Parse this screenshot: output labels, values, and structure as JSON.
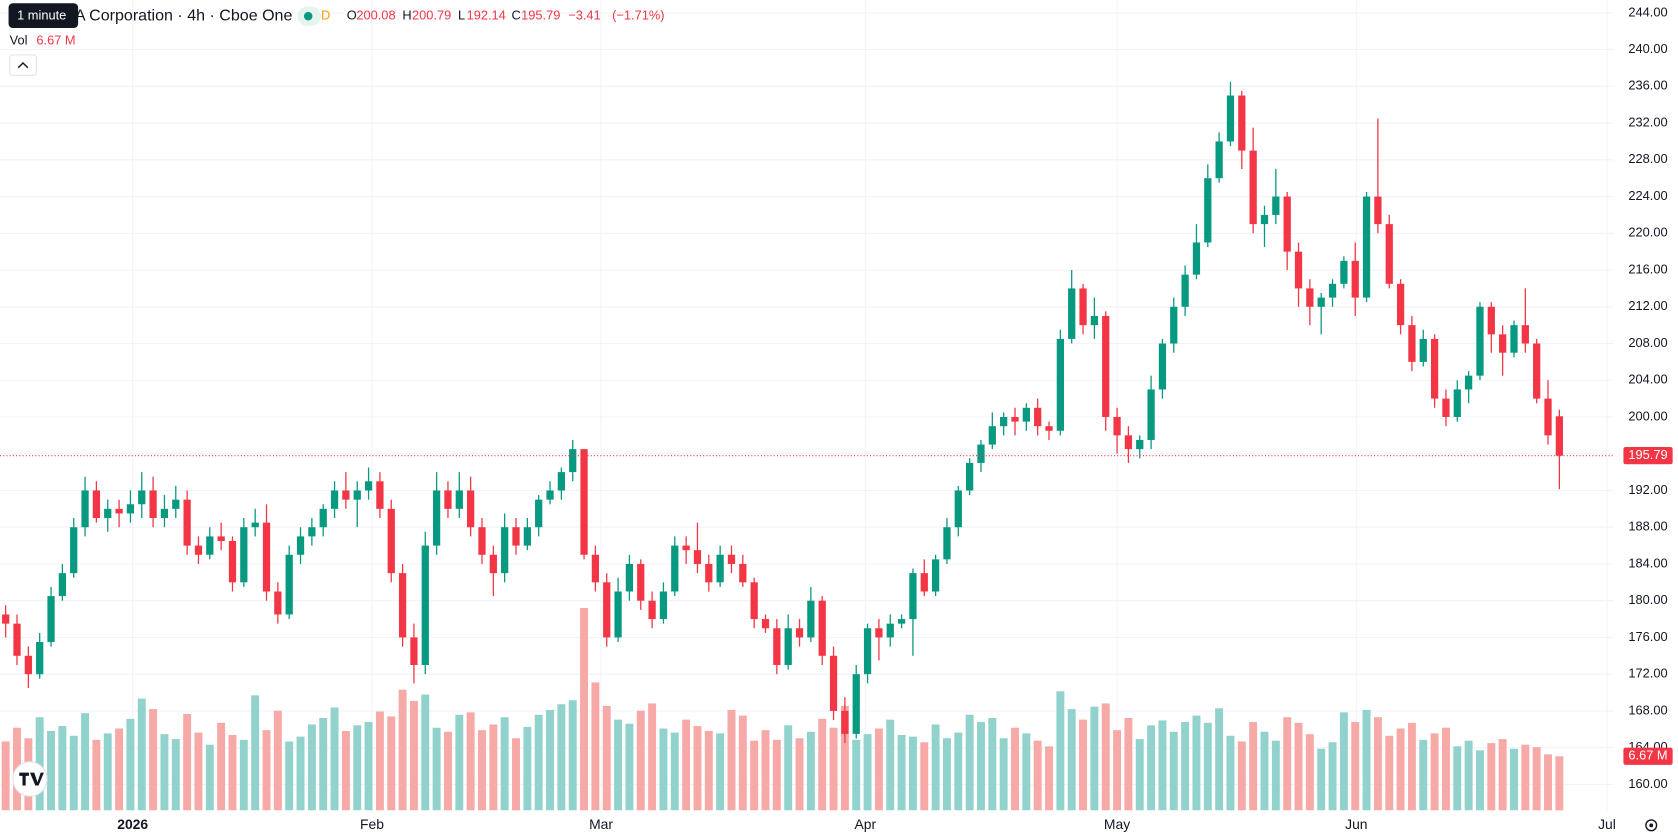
{
  "chart_data": {
    "type": "candlestick",
    "title": "A Corporation · 4h · Cboe One",
    "tooltip": "1 minute",
    "session_badge": "D",
    "ohlc_labels": [
      "O",
      "H",
      "L",
      "C"
    ],
    "change": {
      "value": -3.41,
      "label": "−3.41"
    },
    "change_pct": {
      "value": -1.71,
      "label": "(−1.71%)"
    },
    "volume_title": "Vol",
    "last_volume": {
      "value": 6.67,
      "label": "6.67 M"
    },
    "up_color": "#089981",
    "down_color": "#f23645",
    "up_volume_color": "#92d2cc",
    "down_volume_color": "#f7a9a7",
    "grid": true,
    "xlim": [
      -0.5,
      141.8
    ],
    "xticks": [
      {
        "value": 11.2,
        "label": "2026"
      },
      {
        "value": 32.3,
        "label": "Feb"
      },
      {
        "value": 52.5,
        "label": "Mar"
      },
      {
        "value": 75.8,
        "label": "Apr"
      },
      {
        "value": 98,
        "label": "May"
      },
      {
        "value": 119.1,
        "label": "Jun"
      },
      {
        "value": 141.2,
        "label": "Jul"
      }
    ],
    "ylim": [
      156.95,
      245.4
    ],
    "yticks": [
      {
        "value": 160,
        "label": "160.00"
      },
      {
        "value": 164,
        "label": "164.00"
      },
      {
        "value": 168,
        "label": "168.00"
      },
      {
        "value": 172,
        "label": "172.00"
      },
      {
        "value": 176,
        "label": "176.00"
      },
      {
        "value": 180,
        "label": "180.00"
      },
      {
        "value": 184,
        "label": "184.00"
      },
      {
        "value": 188,
        "label": "188.00"
      },
      {
        "value": 192,
        "label": "192.00"
      },
      {
        "value": 196,
        "label": "196.00"
      },
      {
        "value": 200,
        "label": "200.00"
      },
      {
        "value": 204,
        "label": "204.00"
      },
      {
        "value": 208,
        "label": "208.00"
      },
      {
        "value": 212,
        "label": "212.00"
      },
      {
        "value": 216,
        "label": "216.00"
      },
      {
        "value": 220,
        "label": "220.00"
      },
      {
        "value": 224,
        "label": "224.00"
      },
      {
        "value": 228,
        "label": "228.00"
      },
      {
        "value": 232,
        "label": "232.00"
      },
      {
        "value": 236,
        "label": "236.00"
      },
      {
        "value": 240,
        "label": "240.00"
      },
      {
        "value": 244,
        "label": "244.00"
      }
    ],
    "open": [
      178.5,
      177.5,
      174,
      172,
      175.5,
      180.5,
      183,
      188,
      192,
      189,
      190,
      189.5,
      190.5,
      192,
      189,
      190,
      191,
      186,
      185,
      187,
      186.5,
      182,
      188,
      188.5,
      181,
      178.5,
      185,
      187,
      188,
      190,
      192,
      191,
      192,
      193,
      190,
      183,
      176,
      173,
      186,
      192,
      190,
      192,
      188,
      185,
      183,
      188,
      186,
      188,
      191,
      192,
      194,
      196.5,
      185,
      182,
      176,
      181,
      184,
      180,
      178,
      181,
      186,
      185.5,
      184,
      182,
      185,
      184,
      182,
      178,
      177,
      173,
      177,
      176,
      180,
      174,
      168,
      165.5,
      172,
      177,
      176,
      177.5,
      178,
      183,
      181,
      184.5,
      188,
      192,
      195,
      197,
      199,
      200,
      199.5,
      201,
      199,
      198.5,
      208.5,
      214,
      210,
      211,
      200,
      198,
      196.5,
      197.5,
      203,
      208,
      212,
      215.5,
      219,
      226,
      230,
      235,
      229,
      221,
      222,
      224,
      218,
      214,
      212,
      213,
      214.5,
      217,
      213,
      224,
      221,
      214.5,
      210,
      206,
      208.5,
      202,
      200,
      203,
      204.5,
      212,
      209,
      207,
      210,
      208,
      202,
      200.08
    ],
    "high": [
      179.5,
      178.5,
      175,
      176.5,
      181.5,
      184,
      189,
      193.5,
      193,
      191,
      191,
      192,
      194,
      193.5,
      191.5,
      192.5,
      192,
      187,
      188,
      188.5,
      187,
      189,
      190,
      190.5,
      182,
      186,
      188,
      189,
      190.5,
      193,
      194,
      193,
      194.5,
      194,
      191,
      184,
      177.5,
      187.5,
      194,
      193,
      194,
      193.5,
      189,
      186,
      189.5,
      189,
      189,
      191.5,
      193,
      194.5,
      197.5,
      196.5,
      186,
      183,
      182.5,
      185,
      184.5,
      181,
      182,
      187,
      187,
      188.5,
      185,
      186,
      186,
      185,
      182.5,
      178.5,
      178,
      178.5,
      178,
      181.5,
      180.5,
      175,
      169.5,
      173,
      177.5,
      178,
      178.5,
      178.5,
      183.5,
      184.5,
      185,
      189,
      192.5,
      195.5,
      197.5,
      200.5,
      200.5,
      201,
      201.5,
      202,
      199.5,
      209.5,
      216,
      214.5,
      213,
      211.5,
      201,
      199,
      198,
      204.5,
      208.5,
      213,
      216.5,
      221,
      227.5,
      231,
      236.5,
      235.5,
      231.5,
      223,
      227,
      224.5,
      219,
      215,
      213.5,
      215,
      217.5,
      219,
      224.5,
      232.5,
      222,
      215,
      211,
      209.5,
      209,
      203,
      204,
      205,
      212.5,
      212.5,
      210,
      210.5,
      214,
      208.5,
      204,
      200.79
    ],
    "low": [
      176,
      173,
      170.5,
      171.5,
      175,
      180,
      182.5,
      187,
      188.5,
      187.5,
      188,
      188.5,
      189,
      188,
      188,
      189,
      185,
      184,
      184.5,
      185.5,
      181,
      181.5,
      187,
      180,
      177.5,
      178,
      184,
      186,
      187,
      189,
      190,
      188,
      191,
      189,
      182,
      175,
      171,
      172,
      185,
      189,
      189,
      187,
      184,
      180.5,
      182,
      185,
      185.5,
      187,
      190.5,
      191,
      193,
      184.5,
      181,
      175,
      175.5,
      180,
      179,
      177,
      177.5,
      180.5,
      184,
      183,
      181,
      181.5,
      183,
      181.5,
      177,
      176.5,
      172,
      172.5,
      175,
      175.5,
      173,
      167,
      164.5,
      165,
      171,
      173.5,
      175,
      177,
      174,
      180.5,
      180.5,
      184,
      187,
      191.5,
      194,
      196.5,
      198,
      198,
      198.5,
      198,
      197.5,
      198,
      208,
      209,
      208.5,
      198.5,
      196,
      195,
      195.5,
      196.5,
      202,
      207,
      211,
      215,
      218.5,
      225.5,
      229.5,
      227,
      220,
      218.5,
      221,
      216,
      212,
      210,
      209,
      212,
      214,
      211,
      212.5,
      220,
      214,
      209,
      205,
      205.5,
      201,
      199,
      199.5,
      201.5,
      204,
      207,
      204.5,
      206.5,
      207,
      201.5,
      197,
      192.14
    ],
    "close": [
      177.5,
      174,
      172,
      175.5,
      180.5,
      183,
      188,
      192,
      189,
      190,
      189.5,
      190.5,
      192,
      189,
      190,
      191,
      186,
      185,
      187,
      186.5,
      182,
      188,
      188.5,
      181,
      178.5,
      185,
      187,
      188,
      190,
      192,
      191,
      192,
      193,
      190,
      183,
      176,
      173,
      186,
      192,
      190,
      192,
      188,
      185,
      183,
      188,
      186,
      188,
      191,
      192,
      194,
      196.5,
      185,
      182,
      176,
      181,
      184,
      180,
      178,
      181,
      186,
      185.5,
      184,
      182,
      185,
      184,
      182,
      178,
      177,
      173,
      177,
      176,
      180,
      174,
      168,
      165.5,
      172,
      177,
      176,
      177.5,
      178,
      183,
      181,
      184.5,
      188,
      192,
      195,
      197,
      199,
      200,
      199.5,
      201,
      199,
      198.5,
      208.5,
      214,
      210,
      211,
      200,
      198,
      196.5,
      197.5,
      203,
      208,
      212,
      215.5,
      219,
      226,
      230,
      235,
      229,
      221,
      222,
      224,
      218,
      214,
      212,
      213,
      214.5,
      217,
      213,
      224,
      221,
      214.5,
      210,
      206,
      208.5,
      202,
      200,
      203,
      204.5,
      212,
      209,
      207,
      210,
      208,
      202,
      198,
      195.79
    ],
    "volume": [
      8.5,
      10.2,
      8.9,
      11.5,
      9.8,
      10.4,
      9.2,
      12,
      8.7,
      9.5,
      10.1,
      11.3,
      13.8,
      12.5,
      9.4,
      8.8,
      11.9,
      9.6,
      8.1,
      10.8,
      9.3,
      8.7,
      14.2,
      9.9,
      12.3,
      8.5,
      9.1,
      10.6,
      11.4,
      12.7,
      9.8,
      10.5,
      10.9,
      12.2,
      11.6,
      14.9,
      13.5,
      14.3,
      10.2,
      9.7,
      11.8,
      12.1,
      9.9,
      10.6,
      11.5,
      8.9,
      10.3,
      11.8,
      12.4,
      13.1,
      13.6,
      25,
      15.8,
      12.9,
      11.2,
      10.7,
      12.3,
      13.2,
      10.1,
      9.6,
      11.2,
      10.4,
      9.8,
      9.5,
      12.4,
      11.7,
      8.6,
      9.9,
      8.7,
      10.5,
      8.9,
      9.7,
      11.3,
      10.2,
      12.9,
      8.7,
      9.4,
      10.1,
      11.2,
      9.3,
      9.1,
      8.4,
      10.6,
      8.9,
      9.6,
      11.8,
      10.9,
      11.4,
      8.9,
      10.2,
      9.5,
      8.6,
      7.9,
      14.7,
      12.5,
      11.2,
      12.8,
      13.2,
      9.9,
      11.4,
      8.8,
      10.5,
      11.1,
      9.7,
      10.9,
      11.7,
      10.8,
      12.6,
      9.2,
      8.5,
      10.9,
      9.7,
      8.6,
      11.5,
      10.8,
      9.4,
      7.6,
      8.4,
      12.1,
      10.9,
      12.4,
      11.5,
      9.2,
      10.1,
      10.8,
      8.7,
      9.5,
      10.2,
      7.9,
      8.6,
      7.4,
      8.3,
      8.8,
      7.6,
      8.1,
      7.8,
      6.9,
      6.67
    ]
  }
}
